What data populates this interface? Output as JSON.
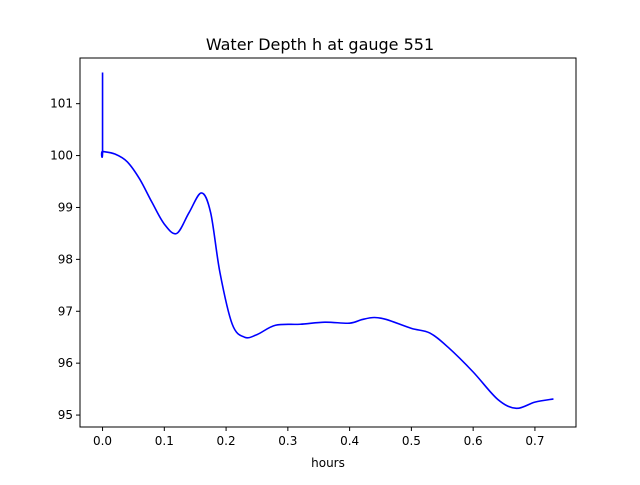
{
  "chart_data": {
    "type": "line",
    "title": "Water Depth h at gauge 551",
    "xlabel": "hours",
    "ylabel": "",
    "xlim": [
      -0.0365,
      0.7665
    ],
    "ylim": [
      94.77,
      101.88
    ],
    "xticks": [
      0.0,
      0.1,
      0.2,
      0.3,
      0.4,
      0.5,
      0.6,
      0.7
    ],
    "xtick_labels": [
      "0.0",
      "0.1",
      "0.2",
      "0.3",
      "0.4",
      "0.5",
      "0.6",
      "0.7"
    ],
    "yticks": [
      95,
      96,
      97,
      98,
      99,
      100,
      101
    ],
    "ytick_labels": [
      "95",
      "96",
      "97",
      "98",
      "99",
      "100",
      "101"
    ],
    "grid": false,
    "legend": "none",
    "series": [
      {
        "color": "#0000ff",
        "x": [
          0.0,
          0.0,
          0.0,
          0.02,
          0.04,
          0.06,
          0.08,
          0.1,
          0.12,
          0.14,
          0.16,
          0.175,
          0.19,
          0.21,
          0.23,
          0.25,
          0.28,
          0.32,
          0.36,
          0.4,
          0.42,
          0.44,
          0.46,
          0.5,
          0.53,
          0.56,
          0.6,
          0.64,
          0.67,
          0.7,
          0.73
        ],
        "y": [
          101.6,
          100.08,
          100.08,
          100.03,
          99.88,
          99.55,
          99.1,
          98.68,
          98.5,
          98.9,
          99.28,
          98.9,
          97.75,
          96.75,
          96.5,
          96.55,
          96.73,
          96.75,
          96.79,
          96.77,
          96.84,
          96.88,
          96.84,
          96.67,
          96.58,
          96.3,
          95.83,
          95.3,
          95.13,
          95.25,
          95.31
        ]
      }
    ]
  }
}
